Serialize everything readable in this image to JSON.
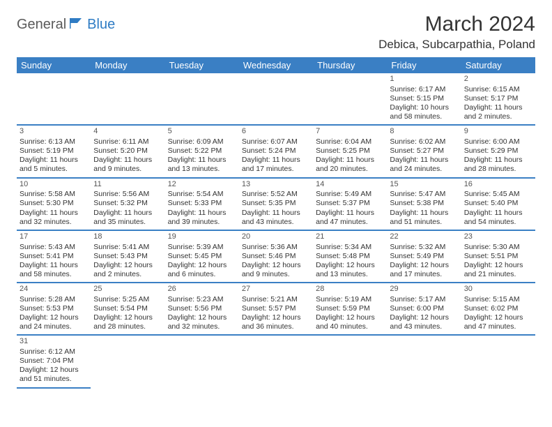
{
  "logo": {
    "text1": "General",
    "text2": "Blue"
  },
  "title": "March 2024",
  "location": "Debica, Subcarpathia, Poland",
  "dayHeaders": [
    "Sunday",
    "Monday",
    "Tuesday",
    "Wednesday",
    "Thursday",
    "Friday",
    "Saturday"
  ],
  "colors": {
    "headerBg": "#3a7fc4",
    "headerText": "#ffffff",
    "rowBorder": "#3a7fc4",
    "cellBorder": "#cfcfcf",
    "text": "#333333",
    "logoBlue": "#2f7cc4",
    "logoGray": "#5a5a5a"
  },
  "weeks": [
    [
      null,
      null,
      null,
      null,
      null,
      {
        "d": "1",
        "sr": "6:17 AM",
        "ss": "5:15 PM",
        "dl": "10 hours and 58 minutes."
      },
      {
        "d": "2",
        "sr": "6:15 AM",
        "ss": "5:17 PM",
        "dl": "11 hours and 2 minutes."
      }
    ],
    [
      {
        "d": "3",
        "sr": "6:13 AM",
        "ss": "5:19 PM",
        "dl": "11 hours and 5 minutes."
      },
      {
        "d": "4",
        "sr": "6:11 AM",
        "ss": "5:20 PM",
        "dl": "11 hours and 9 minutes."
      },
      {
        "d": "5",
        "sr": "6:09 AM",
        "ss": "5:22 PM",
        "dl": "11 hours and 13 minutes."
      },
      {
        "d": "6",
        "sr": "6:07 AM",
        "ss": "5:24 PM",
        "dl": "11 hours and 17 minutes."
      },
      {
        "d": "7",
        "sr": "6:04 AM",
        "ss": "5:25 PM",
        "dl": "11 hours and 20 minutes."
      },
      {
        "d": "8",
        "sr": "6:02 AM",
        "ss": "5:27 PM",
        "dl": "11 hours and 24 minutes."
      },
      {
        "d": "9",
        "sr": "6:00 AM",
        "ss": "5:29 PM",
        "dl": "11 hours and 28 minutes."
      }
    ],
    [
      {
        "d": "10",
        "sr": "5:58 AM",
        "ss": "5:30 PM",
        "dl": "11 hours and 32 minutes."
      },
      {
        "d": "11",
        "sr": "5:56 AM",
        "ss": "5:32 PM",
        "dl": "11 hours and 35 minutes."
      },
      {
        "d": "12",
        "sr": "5:54 AM",
        "ss": "5:33 PM",
        "dl": "11 hours and 39 minutes."
      },
      {
        "d": "13",
        "sr": "5:52 AM",
        "ss": "5:35 PM",
        "dl": "11 hours and 43 minutes."
      },
      {
        "d": "14",
        "sr": "5:49 AM",
        "ss": "5:37 PM",
        "dl": "11 hours and 47 minutes."
      },
      {
        "d": "15",
        "sr": "5:47 AM",
        "ss": "5:38 PM",
        "dl": "11 hours and 51 minutes."
      },
      {
        "d": "16",
        "sr": "5:45 AM",
        "ss": "5:40 PM",
        "dl": "11 hours and 54 minutes."
      }
    ],
    [
      {
        "d": "17",
        "sr": "5:43 AM",
        "ss": "5:41 PM",
        "dl": "11 hours and 58 minutes."
      },
      {
        "d": "18",
        "sr": "5:41 AM",
        "ss": "5:43 PM",
        "dl": "12 hours and 2 minutes."
      },
      {
        "d": "19",
        "sr": "5:39 AM",
        "ss": "5:45 PM",
        "dl": "12 hours and 6 minutes."
      },
      {
        "d": "20",
        "sr": "5:36 AM",
        "ss": "5:46 PM",
        "dl": "12 hours and 9 minutes."
      },
      {
        "d": "21",
        "sr": "5:34 AM",
        "ss": "5:48 PM",
        "dl": "12 hours and 13 minutes."
      },
      {
        "d": "22",
        "sr": "5:32 AM",
        "ss": "5:49 PM",
        "dl": "12 hours and 17 minutes."
      },
      {
        "d": "23",
        "sr": "5:30 AM",
        "ss": "5:51 PM",
        "dl": "12 hours and 21 minutes."
      }
    ],
    [
      {
        "d": "24",
        "sr": "5:28 AM",
        "ss": "5:53 PM",
        "dl": "12 hours and 24 minutes."
      },
      {
        "d": "25",
        "sr": "5:25 AM",
        "ss": "5:54 PM",
        "dl": "12 hours and 28 minutes."
      },
      {
        "d": "26",
        "sr": "5:23 AM",
        "ss": "5:56 PM",
        "dl": "12 hours and 32 minutes."
      },
      {
        "d": "27",
        "sr": "5:21 AM",
        "ss": "5:57 PM",
        "dl": "12 hours and 36 minutes."
      },
      {
        "d": "28",
        "sr": "5:19 AM",
        "ss": "5:59 PM",
        "dl": "12 hours and 40 minutes."
      },
      {
        "d": "29",
        "sr": "5:17 AM",
        "ss": "6:00 PM",
        "dl": "12 hours and 43 minutes."
      },
      {
        "d": "30",
        "sr": "5:15 AM",
        "ss": "6:02 PM",
        "dl": "12 hours and 47 minutes."
      }
    ],
    [
      {
        "d": "31",
        "sr": "6:12 AM",
        "ss": "7:04 PM",
        "dl": "12 hours and 51 minutes."
      },
      null,
      null,
      null,
      null,
      null,
      null
    ]
  ]
}
